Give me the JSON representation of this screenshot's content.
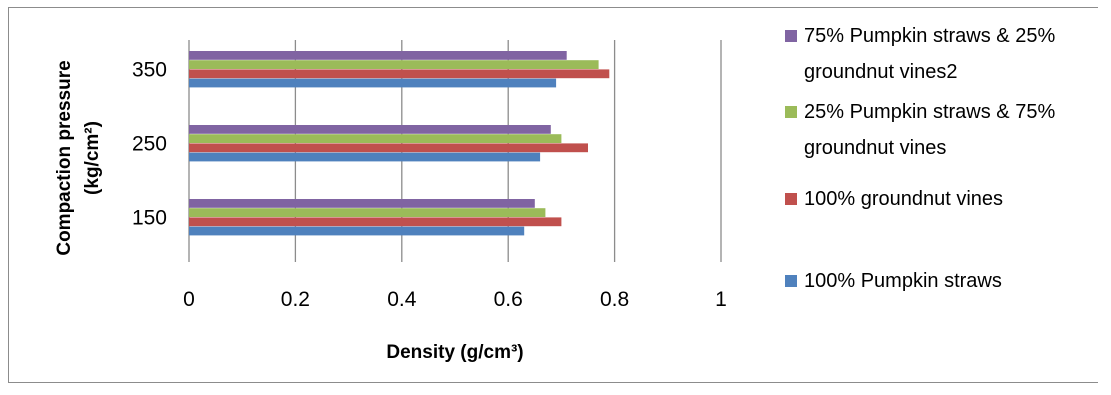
{
  "chart_data": {
    "type": "bar",
    "orientation": "horizontal",
    "categories": [
      "150",
      "250",
      "350"
    ],
    "series": [
      {
        "name": "100% Pumpkin straws",
        "color": "#4f81bd",
        "values": [
          0.63,
          0.66,
          0.69
        ]
      },
      {
        "name": "100% groundnut vines",
        "color": "#c0504d",
        "values": [
          0.7,
          0.75,
          0.79
        ]
      },
      {
        "name": "25% Pumpkin straws & 75% groundnut vines",
        "color": "#9bbb59",
        "values": [
          0.67,
          0.7,
          0.77
        ]
      },
      {
        "name": "75% Pumpkin straws & 25% groundnut vines2",
        "color": "#8064a2",
        "values": [
          0.65,
          0.68,
          0.71
        ]
      }
    ],
    "xlabel": "Density (g/cm³)",
    "ylabel_line1": "Compaction pressure",
    "ylabel_line2": "(kg/cm²)",
    "xlim": [
      0,
      1
    ],
    "xticks": [
      "0",
      "0.2",
      "0.4",
      "0.6",
      "0.8",
      "1"
    ],
    "grid": "vertical",
    "legend": {
      "position": "right",
      "order": [
        3,
        2,
        1,
        0
      ],
      "lines": [
        [
          "75% Pumpkin straws & 25%",
          "groundnut vines2"
        ],
        [
          "25% Pumpkin straws & 75%",
          "groundnut vines"
        ],
        [
          "100% groundnut vines"
        ],
        [
          "100% Pumpkin straws"
        ]
      ]
    }
  }
}
